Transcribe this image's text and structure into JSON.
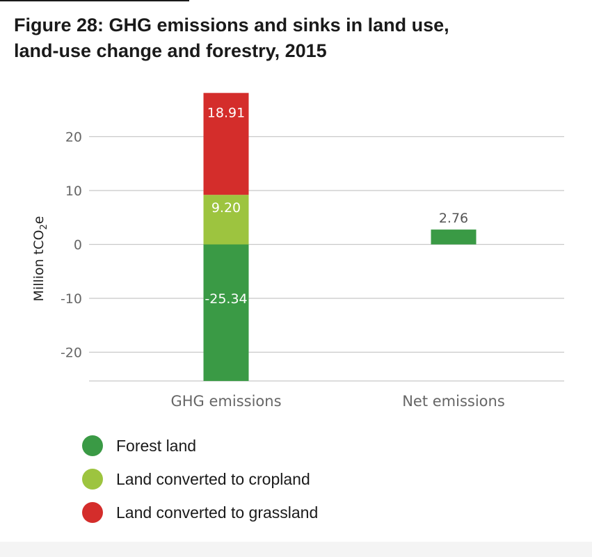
{
  "title": {
    "line1": "Figure 28: GHG emissions and sinks in land use,",
    "line2": "land-use change and forestry, 2015"
  },
  "chart_data": {
    "type": "bar",
    "stacked": true,
    "categories": [
      "GHG emissions",
      "Net emissions"
    ],
    "ylabel": "Million tCO",
    "ylabel_sub": "2",
    "ylabel_suffix": "e",
    "ylim": [
      -25.34,
      28.11
    ],
    "yticks": [
      20,
      10,
      0,
      -10,
      -20
    ],
    "grid": true,
    "legend_position": "bottom-left",
    "series": [
      {
        "name": "Forest land",
        "color": "#3a9a45",
        "values": [
          -25.34,
          null
        ],
        "labels": [
          "-25.34",
          ""
        ]
      },
      {
        "name": "Land converted to cropland",
        "color": "#9dc43f",
        "values": [
          9.2,
          null
        ],
        "labels": [
          "9.20",
          ""
        ]
      },
      {
        "name": "Land converted to grassland",
        "color": "#d42d2b",
        "values": [
          18.91,
          null
        ],
        "labels": [
          "18.91",
          ""
        ]
      },
      {
        "name": "Net emissions",
        "color": "#3a9a45",
        "values": [
          null,
          2.76
        ],
        "labels": [
          "",
          "2.76"
        ],
        "in_legend": false
      }
    ]
  },
  "legend": {
    "items": [
      {
        "label": "Forest land",
        "color": "#3a9a45"
      },
      {
        "label": "Land converted to cropland",
        "color": "#9dc43f"
      },
      {
        "label": "Land converted to grassland",
        "color": "#d42d2b"
      }
    ]
  }
}
